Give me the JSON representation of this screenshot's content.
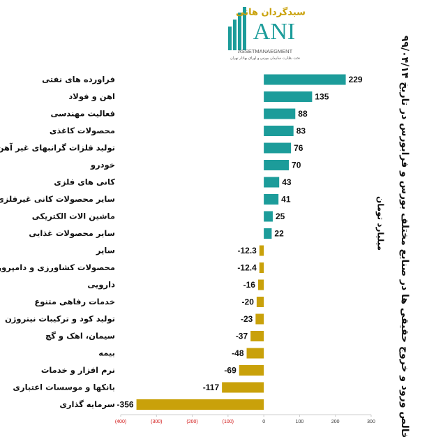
{
  "logo": {
    "brand": "سبدگردان هانی",
    "name": "ANI",
    "sub": "ASSETMANAEGMENT",
    "note": "تحت نظارت سازمان بورس و اوراق بهادار تهران"
  },
  "chart_data": {
    "type": "barh",
    "title": "خالص ورود و خروج حقیقی ها در صنایع مختلف بورس و فرابورس در تاریخ ۹۹/۰۴/۱۴",
    "subtitle": "میلیارد تومان",
    "categories": [
      "فراورده های نفتی",
      "اهن و فولاد",
      "فعالیت مهندسی",
      "محصولات کاغذی",
      "تولید فلزات گرانبهای غیر آهن",
      "خودرو",
      "کانی های فلزی",
      "سایر محصولات کانی غیرفلزی",
      "ماشین الات الکتریکی",
      "سایر محصولات غذایی",
      "سایر",
      "محصولات کشاورزی و دامپروری",
      "دارویی",
      "خدمات رفاهی متنوع",
      "تولید کود و ترکیبات نیتروژن",
      "سیمان، اهک و گچ",
      "بیمه",
      "نرم افزار و خدمات",
      "بانکها و موسسات اعتباری",
      "سرمایه گذاری"
    ],
    "values": [
      229,
      135,
      88,
      83,
      76,
      70,
      43,
      41,
      25,
      22,
      -12.3,
      -12.4,
      -16,
      -20,
      -23,
      -37,
      -48,
      -69,
      -117,
      -356
    ],
    "positive_color": "#1c9c9a",
    "negative_color": "#c9a10a",
    "negative_tick_color": "#d01010",
    "xlim": [
      -400,
      300
    ],
    "xticks": [
      {
        "value": -400,
        "label": "(400)"
      },
      {
        "value": -300,
        "label": "(300)"
      },
      {
        "value": -200,
        "label": "(200)"
      },
      {
        "value": -100,
        "label": "(100)"
      },
      0,
      100,
      200,
      300
    ]
  }
}
